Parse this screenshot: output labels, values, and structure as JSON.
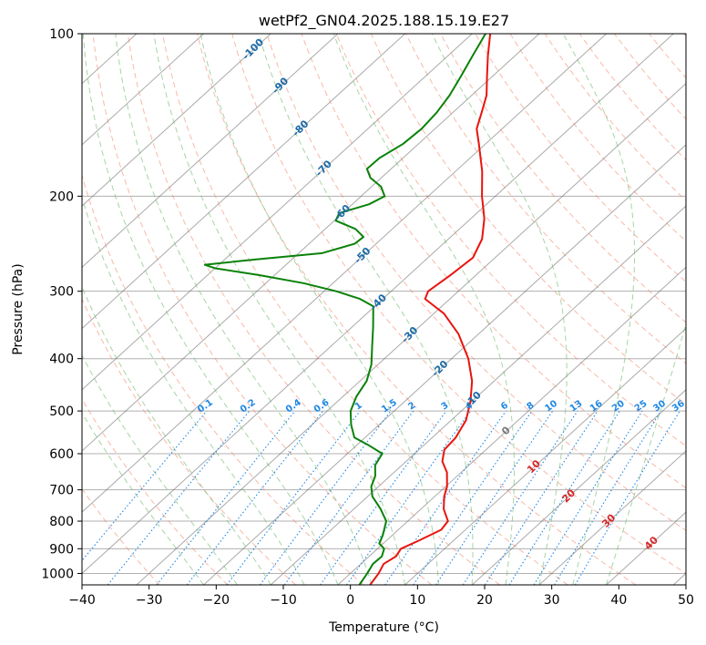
{
  "chart_data": {
    "type": "skew-t",
    "title": "wetPf2_GN04.2025.188.15.19.E27",
    "xlabel": "Temperature (°C)",
    "ylabel": "Pressure (hPa)",
    "xlim": [
      -40,
      50
    ],
    "ylim_pressure": [
      1050,
      100
    ],
    "x_ticks": [
      -40,
      -30,
      -20,
      -10,
      0,
      10,
      20,
      30,
      40,
      50
    ],
    "x_tick_labels": [
      "−40",
      "−30",
      "−20",
      "−10",
      "0",
      "10",
      "20",
      "30",
      "40",
      "50"
    ],
    "y_ticks": [
      1000,
      900,
      800,
      700,
      600,
      500,
      400,
      300,
      200,
      100
    ],
    "y_tick_labels": [
      "1000",
      "900",
      "800",
      "700",
      "600",
      "500",
      "400",
      "300",
      "200",
      "100"
    ],
    "grid": true,
    "colors": {
      "temperature": "#e8140e",
      "dewpoint": "#0a820a",
      "isotherm": "#555555",
      "dry_adiabat": "#f08060",
      "moist_adiabat": "#6ab86a",
      "mixing_ratio": "#1e88e5",
      "mixing_label": "#1e88e5",
      "isotherm_label_neg": "#1a6aa8",
      "isotherm_label_pos": "#d62728",
      "isotherm_label_zero": "#777777"
    },
    "isotherm_labels_negative": [
      "-100",
      "-90",
      "-80",
      "-70",
      "-60",
      "-50",
      "-40",
      "-30",
      "-20",
      "-10"
    ],
    "isotherm_labels_positive": [
      "0",
      "10",
      "20",
      "30",
      "40"
    ],
    "mixing_ratio_labels": [
      "0.1",
      "0.2",
      "0.4",
      "0.6",
      "1",
      "1.5",
      "2",
      "3",
      "4",
      "6",
      "8",
      "10",
      "13",
      "16",
      "20",
      "25",
      "30",
      "36"
    ],
    "series": [
      {
        "name": "temperature",
        "points": [
          {
            "p": 1050,
            "t": 4.8
          },
          {
            "p": 1000,
            "t": 4.2
          },
          {
            "p": 960,
            "t": 3.4
          },
          {
            "p": 930,
            "t": 4.0
          },
          {
            "p": 900,
            "t": 3.5
          },
          {
            "p": 870,
            "t": 4.8
          },
          {
            "p": 830,
            "t": 6.4
          },
          {
            "p": 800,
            "t": 6.0
          },
          {
            "p": 760,
            "t": 3.4
          },
          {
            "p": 720,
            "t": 1.4
          },
          {
            "p": 690,
            "t": 0.2
          },
          {
            "p": 650,
            "t": -2.1
          },
          {
            "p": 620,
            "t": -4.6
          },
          {
            "p": 590,
            "t": -6.2
          },
          {
            "p": 560,
            "t": -6.5
          },
          {
            "p": 520,
            "t": -7.8
          },
          {
            "p": 480,
            "t": -10.2
          },
          {
            "p": 440,
            "t": -13.3
          },
          {
            "p": 400,
            "t": -17.5
          },
          {
            "p": 360,
            "t": -23.0
          },
          {
            "p": 330,
            "t": -28.5
          },
          {
            "p": 310,
            "t": -33.7
          },
          {
            "p": 300,
            "t": -34.5
          },
          {
            "p": 280,
            "t": -33.8
          },
          {
            "p": 260,
            "t": -33.3
          },
          {
            "p": 240,
            "t": -35.0
          },
          {
            "p": 220,
            "t": -38.0
          },
          {
            "p": 200,
            "t": -42.0
          },
          {
            "p": 180,
            "t": -46.0
          },
          {
            "p": 160,
            "t": -51.0
          },
          {
            "p": 150,
            "t": -53.8
          },
          {
            "p": 140,
            "t": -55.7
          },
          {
            "p": 130,
            "t": -57.8
          },
          {
            "p": 120,
            "t": -60.8
          },
          {
            "p": 110,
            "t": -64.0
          },
          {
            "p": 100,
            "t": -67.3
          }
        ]
      },
      {
        "name": "dewpoint",
        "points": [
          {
            "p": 1050,
            "t": 3.2
          },
          {
            "p": 1000,
            "t": 2.5
          },
          {
            "p": 960,
            "t": 1.8
          },
          {
            "p": 930,
            "t": 1.9
          },
          {
            "p": 900,
            "t": 1.0
          },
          {
            "p": 880,
            "t": -0.6
          },
          {
            "p": 850,
            "t": -1.4
          },
          {
            "p": 800,
            "t": -3.2
          },
          {
            "p": 760,
            "t": -6.0
          },
          {
            "p": 720,
            "t": -9.3
          },
          {
            "p": 690,
            "t": -11.1
          },
          {
            "p": 660,
            "t": -12.2
          },
          {
            "p": 630,
            "t": -14.0
          },
          {
            "p": 600,
            "t": -14.8
          },
          {
            "p": 580,
            "t": -18.0
          },
          {
            "p": 560,
            "t": -21.6
          },
          {
            "p": 530,
            "t": -24.2
          },
          {
            "p": 500,
            "t": -26.5
          },
          {
            "p": 470,
            "t": -28.0
          },
          {
            "p": 440,
            "t": -29.0
          },
          {
            "p": 410,
            "t": -31.0
          },
          {
            "p": 380,
            "t": -33.8
          },
          {
            "p": 350,
            "t": -36.8
          },
          {
            "p": 320,
            "t": -40.2
          },
          {
            "p": 310,
            "t": -43.4
          },
          {
            "p": 300,
            "t": -48.2
          },
          {
            "p": 290,
            "t": -54.3
          },
          {
            "p": 280,
            "t": -62.4
          },
          {
            "p": 272,
            "t": -70.0
          },
          {
            "p": 268,
            "t": -72.1
          },
          {
            "p": 262,
            "t": -65.5
          },
          {
            "p": 255,
            "t": -56.5
          },
          {
            "p": 245,
            "t": -53.2
          },
          {
            "p": 238,
            "t": -53.0
          },
          {
            "p": 230,
            "t": -55.5
          },
          {
            "p": 222,
            "t": -59.8
          },
          {
            "p": 215,
            "t": -60.5
          },
          {
            "p": 207,
            "t": -57.5
          },
          {
            "p": 200,
            "t": -56.5
          },
          {
            "p": 192,
            "t": -58.6
          },
          {
            "p": 185,
            "t": -61.6
          },
          {
            "p": 178,
            "t": -63.6
          },
          {
            "p": 170,
            "t": -63.5
          },
          {
            "p": 160,
            "t": -62.3
          },
          {
            "p": 150,
            "t": -62.0
          },
          {
            "p": 140,
            "t": -62.4
          },
          {
            "p": 130,
            "t": -63.3
          },
          {
            "p": 120,
            "t": -64.7
          },
          {
            "p": 110,
            "t": -66.3
          },
          {
            "p": 100,
            "t": -68.0
          }
        ]
      }
    ]
  }
}
